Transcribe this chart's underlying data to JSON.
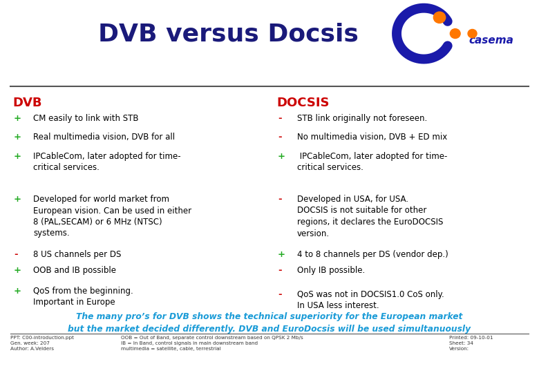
{
  "title": "DVB versus Docsis",
  "title_color": "#1a1a7a",
  "background_color": "#ffffff",
  "header_dvb": "DVB",
  "header_docsis": "DOCSIS",
  "header_color": "#cc0000",
  "dvb_items": [
    {
      "bullet": "+",
      "bullet_color": "#22aa22",
      "text": "CM easily to link with STB"
    },
    {
      "bullet": "+",
      "bullet_color": "#22aa22",
      "text": "Real multimedia vision, DVB for all"
    },
    {
      "bullet": "+",
      "bullet_color": "#22aa22",
      "text": "IPCableCom, later adopted for time-\ncritical services."
    },
    {
      "bullet": "+",
      "bullet_color": "#22aa22",
      "text": "Developed for world market from\nEuropean vision. Can be used in either\n8 (PAL,SECAM) or 6 MHz (NTSC)\nsystems."
    },
    {
      "bullet": "-",
      "bullet_color": "#cc0000",
      "text": "8 US channels per DS"
    },
    {
      "bullet": "+",
      "bullet_color": "#22aa22",
      "text": "OOB and IB possible"
    },
    {
      "bullet": "+",
      "bullet_color": "#22aa22",
      "text": "QoS from the beginning.\nImportant in Europe"
    }
  ],
  "docsis_items": [
    {
      "bullet": "-",
      "bullet_color": "#cc0000",
      "text": "STB link originally not foreseen."
    },
    {
      "bullet": "-",
      "bullet_color": "#cc0000",
      "text": "No multimedia vision, DVB + ED mix"
    },
    {
      "bullet": "+",
      "bullet_color": "#22aa22",
      "text": " IPCableCom, later adopted for time-\ncritical services."
    },
    {
      "bullet": "-",
      "bullet_color": "#cc0000",
      "text": "Developed in USA, for USA.\nDOCSIS is not suitable for other\nregions, it declares the EuroDOCSIS\nversion."
    },
    {
      "bullet": "+",
      "bullet_color": "#22aa22",
      "text": "4 to 8 channels per DS (vendor dep.)"
    },
    {
      "bullet": "-",
      "bullet_color": "#cc0000",
      "text": "Only IB possible."
    },
    {
      "bullet": "-",
      "bullet_color": "#cc0000",
      "text": "QoS was not in DOCSIS1.0 CoS only.\nIn USA less interest."
    }
  ],
  "summary_text": "The many pro’s for DVB shows the technical superiority for the European market\nbut the market decided differently. DVB and EuroDocsis will be used simultanuously",
  "summary_color": "#1a9bd7",
  "footer_left": "PPT: C00-introduction.ppt\nGen. week: 207\nAuthor: A.Velders",
  "footer_mid": "OOB = Out of Band, separate control downstream based on QPSK 2 Mb/s\nIB = In Band, control signals in main downstream band\nmultimedia = satellite, cable, terrestrial",
  "footer_right": "Printed: 09-10-01\nSheet: 34\nVersion:",
  "footer_color": "#333333",
  "logo_circle_color": "#1a1aaa",
  "logo_dot1_color": "#ff7700",
  "logo_dot2_color": "#1a1aaa",
  "logo_dot3_color": "#ff7700",
  "logo_text_color": "#1a1aaa"
}
